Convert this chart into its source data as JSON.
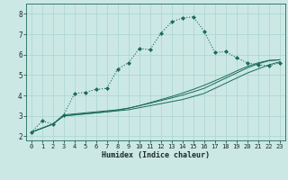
{
  "xlabel": "Humidex (Indice chaleur)",
  "bg_color": "#cce8e4",
  "grid_color": "#a8d4d0",
  "line_color": "#1a6b5a",
  "xlim": [
    -0.5,
    23.5
  ],
  "ylim": [
    1.8,
    8.5
  ],
  "xticks": [
    0,
    1,
    2,
    3,
    4,
    5,
    6,
    7,
    8,
    9,
    10,
    11,
    12,
    13,
    14,
    15,
    16,
    17,
    18,
    19,
    20,
    21,
    22,
    23
  ],
  "yticks": [
    2,
    3,
    4,
    5,
    6,
    7,
    8
  ],
  "curve1_x": [
    0,
    1,
    2,
    3,
    4,
    5,
    6,
    7,
    8,
    9,
    10,
    11,
    12,
    13,
    14,
    15,
    16,
    17,
    18,
    19,
    20,
    21,
    22,
    23
  ],
  "curve1_y": [
    2.2,
    2.75,
    2.6,
    3.05,
    4.1,
    4.15,
    4.3,
    4.35,
    5.3,
    5.6,
    6.3,
    6.25,
    7.05,
    7.6,
    7.8,
    7.85,
    7.15,
    6.1,
    6.15,
    5.85,
    5.6,
    5.5,
    5.45,
    5.6
  ],
  "curve2_x": [
    0,
    2,
    3,
    4,
    5,
    6,
    7,
    8,
    9,
    10,
    11,
    12,
    13,
    14,
    15,
    16,
    17,
    18,
    19,
    20,
    21,
    22,
    23
  ],
  "curve2_y": [
    2.2,
    2.6,
    3.0,
    3.05,
    3.1,
    3.15,
    3.2,
    3.25,
    3.3,
    3.4,
    3.5,
    3.6,
    3.7,
    3.8,
    3.95,
    4.1,
    4.35,
    4.6,
    4.85,
    5.1,
    5.3,
    5.5,
    5.65
  ],
  "curve3_x": [
    0,
    2,
    3,
    4,
    5,
    6,
    7,
    8,
    9,
    10,
    11,
    12,
    13,
    14,
    15,
    16,
    17,
    18,
    19,
    20,
    21,
    22,
    23
  ],
  "curve3_y": [
    2.2,
    2.6,
    3.05,
    3.1,
    3.15,
    3.2,
    3.25,
    3.3,
    3.38,
    3.5,
    3.62,
    3.75,
    3.88,
    4.02,
    4.18,
    4.35,
    4.6,
    4.85,
    5.1,
    5.35,
    5.55,
    5.7,
    5.75
  ],
  "curve4_x": [
    0,
    2,
    3,
    4,
    5,
    6,
    7,
    8,
    9,
    10,
    11,
    12,
    13,
    14,
    15,
    16,
    17,
    18,
    19,
    20,
    21,
    22,
    23
  ],
  "curve4_y": [
    2.2,
    2.6,
    3.0,
    3.05,
    3.1,
    3.15,
    3.2,
    3.28,
    3.38,
    3.5,
    3.65,
    3.8,
    3.95,
    4.12,
    4.3,
    4.5,
    4.72,
    4.95,
    5.2,
    5.42,
    5.6,
    5.72,
    5.75
  ]
}
